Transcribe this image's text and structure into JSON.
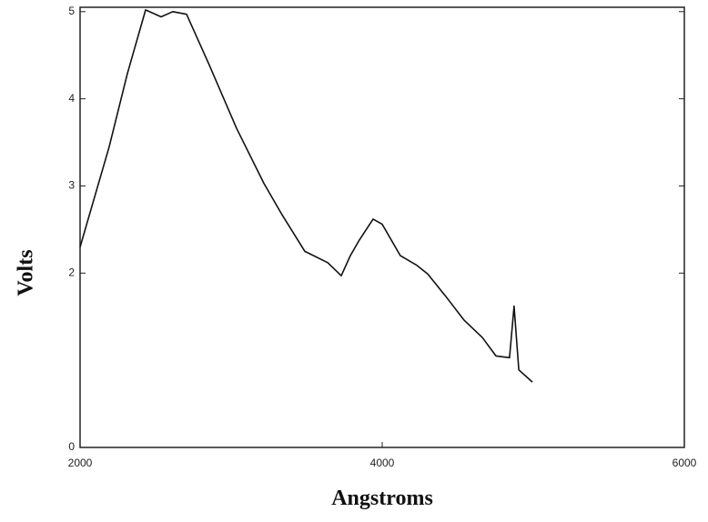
{
  "chart_data": {
    "type": "line",
    "x_label": "Angstroms",
    "y_label": "Volts",
    "xlim": [
      2000,
      6000
    ],
    "xticks": [
      2000,
      4000,
      6000
    ],
    "ylim": [
      0,
      5.05
    ],
    "yticks": [
      0,
      2,
      3,
      4,
      5
    ],
    "series": [
      {
        "color": "#111111",
        "x": [
          2000,
          2193,
          2313,
          2434,
          2536,
          2614,
          2705,
          2855,
          3036,
          3217,
          3337,
          3488,
          3639,
          3729,
          3789,
          3849,
          3940,
          4000,
          4120,
          4229,
          4301,
          4422,
          4542,
          4663,
          4753,
          4843,
          4873,
          4904,
          4994
        ],
        "values": [
          2.3,
          3.45,
          4.29,
          5.02,
          4.94,
          5.0,
          4.97,
          4.39,
          3.66,
          3.03,
          2.67,
          2.25,
          2.12,
          1.97,
          2.2,
          2.38,
          2.62,
          2.56,
          2.2,
          2.09,
          1.99,
          1.73,
          1.46,
          1.26,
          1.05,
          1.03,
          1.62,
          0.89,
          0.75
        ]
      }
    ]
  }
}
